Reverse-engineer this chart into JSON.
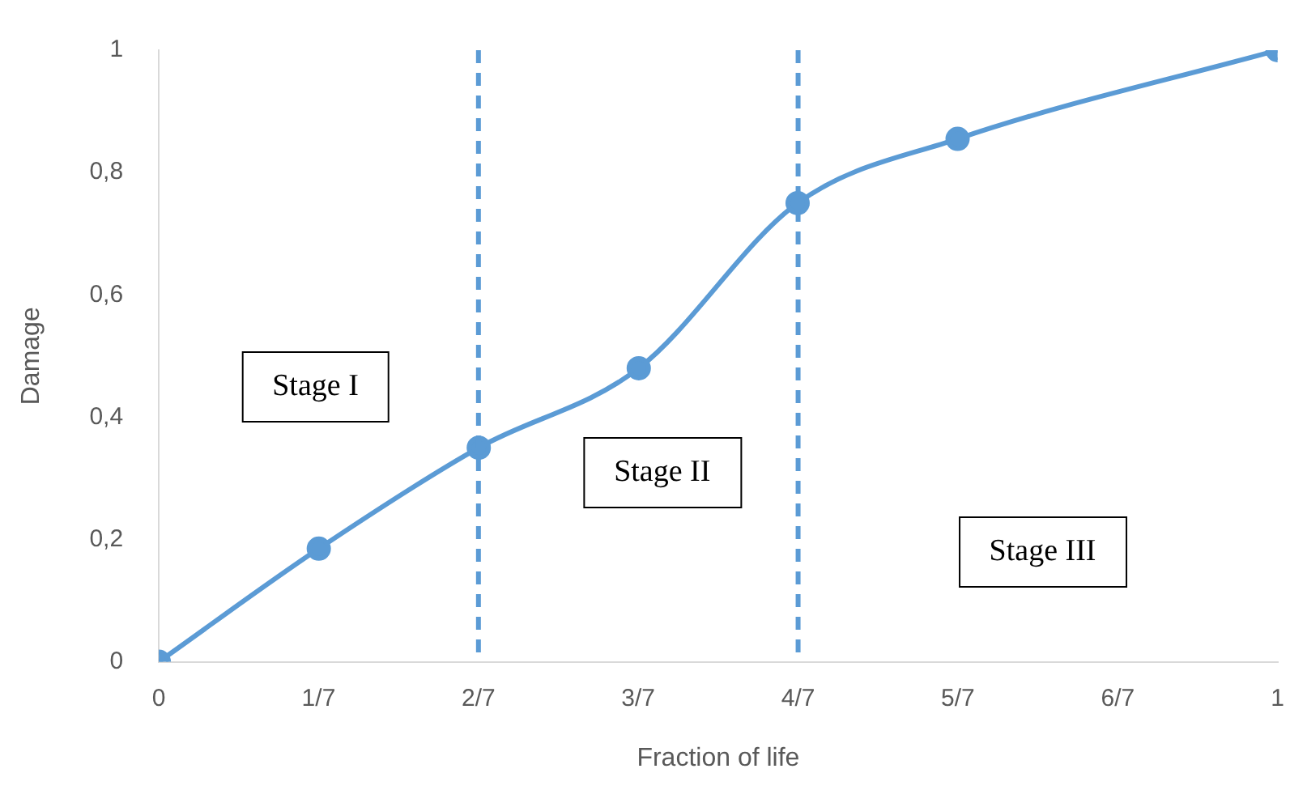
{
  "chart_data": {
    "type": "line",
    "xlabel": "Fraction of life",
    "ylabel": "Damage",
    "x": [
      0,
      0.143,
      0.286,
      0.429,
      0.571,
      0.714,
      1
    ],
    "series": [
      {
        "color": "#5b9bd5",
        "values": [
          0,
          0.185,
          0.35,
          0.48,
          0.75,
          0.855,
          1
        ]
      }
    ],
    "xlim": [
      0,
      1
    ],
    "xticks": [
      0,
      {
        "value": 0.142857,
        "label": "1/7"
      },
      {
        "value": 0.285714,
        "label": "2/7"
      },
      {
        "value": 0.428571,
        "label": "3/7"
      },
      {
        "value": 0.571429,
        "label": "4/7"
      },
      {
        "value": 0.714286,
        "label": "5/7"
      },
      {
        "value": 0.857143,
        "label": "6/7"
      },
      1
    ],
    "ylim": [
      0,
      1
    ],
    "yticks": [
      0,
      {
        "value": 0.2,
        "label": "0,2"
      },
      {
        "value": 0.4,
        "label": "0,4"
      },
      {
        "value": 0.6,
        "label": "0,6"
      },
      {
        "value": 0.8,
        "label": "0,8"
      },
      1
    ],
    "ref_lines": [
      {
        "axis": "x",
        "value": 0.285714,
        "color": "#5b9bd5",
        "line_style": "dashed"
      },
      {
        "axis": "x",
        "value": 0.571429,
        "color": "#5b9bd5",
        "line_style": "dashed"
      }
    ],
    "annotations": [
      "Stage I",
      "Stage II",
      "Stage III"
    ],
    "grid": false,
    "legend": false,
    "marker": "circle",
    "line_style": "solid"
  }
}
